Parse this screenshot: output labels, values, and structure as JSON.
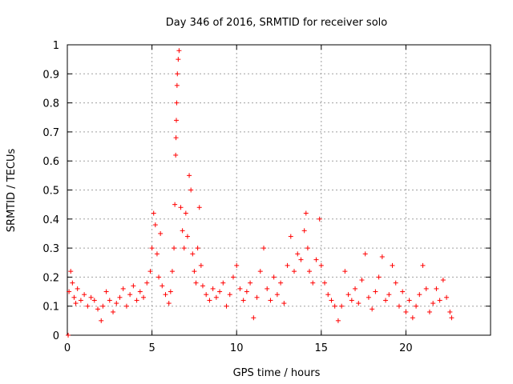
{
  "chart_data": {
    "type": "scatter",
    "title": "Day 346 of 2016, SRMTID for receiver solo",
    "xlabel": "GPS time / hours",
    "ylabel": "SRMTID / TECUs",
    "xlim": [
      0,
      25
    ],
    "ylim": [
      0,
      1
    ],
    "x_ticks": [
      0,
      5,
      10,
      15,
      20
    ],
    "x_tick_labels": [
      "0",
      "5",
      "10",
      "15",
      "20"
    ],
    "y_ticks": [
      0,
      0.1,
      0.2,
      0.3,
      0.4,
      0.5,
      0.6,
      0.7,
      0.8,
      0.9,
      1
    ],
    "y_tick_labels": [
      "0",
      "0.1",
      "0.2",
      "0.3",
      "0.4",
      "0.5",
      "0.6",
      "0.7",
      "0.8",
      "0.9",
      "1"
    ],
    "grid": true,
    "marker": "plus",
    "marker_color": "#ff0000",
    "series": [
      {
        "name": "SRMTID",
        "x": [
          0.05,
          0.1,
          0.2,
          0.3,
          0.4,
          0.5,
          0.6,
          0.8,
          1.0,
          1.2,
          1.4,
          1.6,
          1.8,
          2.0,
          2.1,
          2.3,
          2.5,
          2.7,
          2.9,
          3.1,
          3.3,
          3.5,
          3.7,
          3.9,
          4.1,
          4.3,
          4.5,
          4.7,
          4.9,
          5.0,
          5.1,
          5.2,
          5.3,
          5.4,
          5.5,
          5.6,
          5.8,
          6.0,
          6.1,
          6.2,
          6.3,
          6.35,
          6.4,
          6.42,
          6.44,
          6.46,
          6.48,
          6.5,
          6.55,
          6.6,
          6.7,
          6.8,
          6.9,
          7.0,
          7.1,
          7.2,
          7.3,
          7.4,
          7.5,
          7.6,
          7.7,
          7.8,
          7.9,
          8.0,
          8.2,
          8.4,
          8.6,
          8.8,
          9.0,
          9.2,
          9.4,
          9.6,
          9.8,
          10.0,
          10.2,
          10.4,
          10.6,
          10.8,
          11.0,
          11.2,
          11.4,
          11.6,
          11.8,
          12.0,
          12.2,
          12.4,
          12.6,
          12.8,
          13.0,
          13.2,
          13.4,
          13.6,
          13.8,
          14.0,
          14.1,
          14.2,
          14.3,
          14.5,
          14.7,
          14.9,
          15.0,
          15.2,
          15.4,
          15.6,
          15.8,
          16.0,
          16.2,
          16.4,
          16.6,
          16.8,
          17.0,
          17.2,
          17.4,
          17.6,
          17.8,
          18.0,
          18.2,
          18.4,
          18.6,
          18.8,
          19.0,
          19.2,
          19.4,
          19.6,
          19.8,
          20.0,
          20.2,
          20.4,
          20.6,
          20.8,
          21.0,
          21.2,
          21.4,
          21.6,
          21.8,
          22.0,
          22.2,
          22.4,
          22.6,
          22.7
        ],
        "y": [
          0.0,
          0.15,
          0.22,
          0.18,
          0.13,
          0.11,
          0.16,
          0.12,
          0.14,
          0.1,
          0.13,
          0.12,
          0.09,
          0.05,
          0.1,
          0.15,
          0.12,
          0.08,
          0.11,
          0.13,
          0.16,
          0.1,
          0.14,
          0.17,
          0.12,
          0.15,
          0.13,
          0.18,
          0.22,
          0.3,
          0.42,
          0.38,
          0.28,
          0.2,
          0.35,
          0.17,
          0.14,
          0.11,
          0.15,
          0.22,
          0.3,
          0.45,
          0.62,
          0.68,
          0.74,
          0.8,
          0.86,
          0.9,
          0.95,
          0.98,
          0.44,
          0.36,
          0.3,
          0.42,
          0.34,
          0.55,
          0.5,
          0.28,
          0.22,
          0.18,
          0.3,
          0.44,
          0.24,
          0.17,
          0.14,
          0.12,
          0.16,
          0.13,
          0.15,
          0.18,
          0.1,
          0.14,
          0.2,
          0.24,
          0.16,
          0.12,
          0.15,
          0.18,
          0.06,
          0.13,
          0.22,
          0.3,
          0.16,
          0.12,
          0.2,
          0.14,
          0.18,
          0.11,
          0.24,
          0.34,
          0.22,
          0.28,
          0.26,
          0.36,
          0.42,
          0.3,
          0.22,
          0.18,
          0.26,
          0.4,
          0.24,
          0.18,
          0.14,
          0.12,
          0.1,
          0.05,
          0.1,
          0.22,
          0.14,
          0.12,
          0.16,
          0.11,
          0.19,
          0.28,
          0.13,
          0.09,
          0.15,
          0.2,
          0.27,
          0.12,
          0.14,
          0.24,
          0.18,
          0.1,
          0.15,
          0.08,
          0.12,
          0.06,
          0.1,
          0.14,
          0.24,
          0.16,
          0.08,
          0.11,
          0.16,
          0.12,
          0.19,
          0.13,
          0.08,
          0.06
        ]
      }
    ]
  }
}
